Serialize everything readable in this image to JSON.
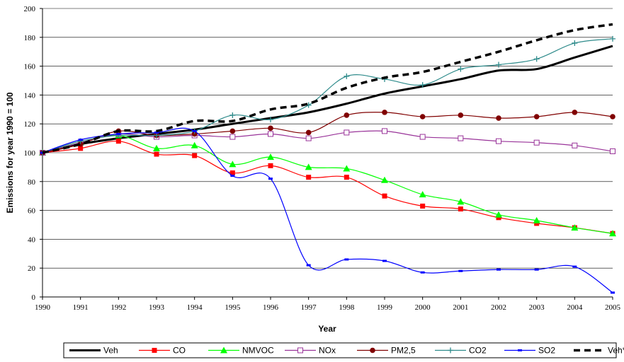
{
  "chart_data": {
    "type": "line",
    "title": "",
    "xlabel": "Year",
    "ylabel": "Emissions for year 1990 = 100",
    "x": [
      1990,
      1991,
      1992,
      1993,
      1994,
      1995,
      1996,
      1997,
      1998,
      1999,
      2000,
      2001,
      2002,
      2003,
      2004,
      2005
    ],
    "x_ticks": [
      "1990",
      "1991",
      "1992",
      "1993",
      "1994",
      "1995",
      "1996",
      "1997",
      "1998",
      "1999",
      "2000",
      "2001",
      "2002",
      "2003",
      "2004",
      "2005"
    ],
    "ylim": [
      0,
      200
    ],
    "y_ticks": [
      "0",
      "20",
      "40",
      "60",
      "80",
      "100",
      "120",
      "140",
      "160",
      "180",
      "200"
    ],
    "grid": "horizontal",
    "legend_position": "bottom",
    "series": [
      {
        "name": "Veh",
        "color": "#000000",
        "marker": "none",
        "style": "thick",
        "values": [
          100,
          106,
          110,
          113,
          116,
          120,
          124,
          128,
          134,
          141,
          146,
          151,
          157,
          158,
          166,
          174
        ]
      },
      {
        "name": "CO",
        "color": "#ff0000",
        "marker": "square",
        "style": "solid",
        "values": [
          100,
          103,
          108,
          99,
          98,
          86,
          91,
          83,
          83,
          70,
          63,
          61,
          55,
          51,
          48,
          44
        ]
      },
      {
        "name": "NMVOC",
        "color": "#00ff00",
        "marker": "triangle",
        "style": "solid",
        "values": [
          100,
          107,
          112,
          103,
          105,
          92,
          97,
          90,
          89,
          81,
          71,
          66,
          57,
          53,
          48,
          44
        ]
      },
      {
        "name": "NOx",
        "color": "#993399",
        "marker": "square-open",
        "style": "solid",
        "values": [
          100,
          107,
          113,
          111,
          112,
          111,
          113,
          110,
          114,
          115,
          111,
          110,
          108,
          107,
          105,
          101
        ]
      },
      {
        "name": "PM2,5",
        "color": "#800000",
        "marker": "circle",
        "style": "solid",
        "values": [
          100,
          106,
          115,
          112,
          113,
          115,
          117,
          114,
          126,
          128,
          125,
          126,
          124,
          125,
          128,
          125
        ]
      },
      {
        "name": "CO2",
        "color": "#2e8b8b",
        "marker": "plus",
        "style": "solid",
        "values": [
          100,
          108,
          112,
          112,
          115,
          126,
          123,
          133,
          153,
          151,
          147,
          158,
          161,
          165,
          176,
          179
        ]
      },
      {
        "name": "SO2",
        "color": "#0000ff",
        "marker": "dash",
        "style": "solid",
        "values": [
          100,
          109,
          113,
          114,
          115,
          84,
          82,
          22,
          26,
          25,
          17,
          18,
          19,
          19,
          21,
          3
        ]
      },
      {
        "name": "Veh*km",
        "color": "#000000",
        "marker": "none",
        "style": "dashed",
        "values": [
          100,
          106,
          115,
          115,
          122,
          122,
          130,
          134,
          145,
          152,
          156,
          163,
          170,
          178,
          185,
          189
        ]
      }
    ]
  }
}
